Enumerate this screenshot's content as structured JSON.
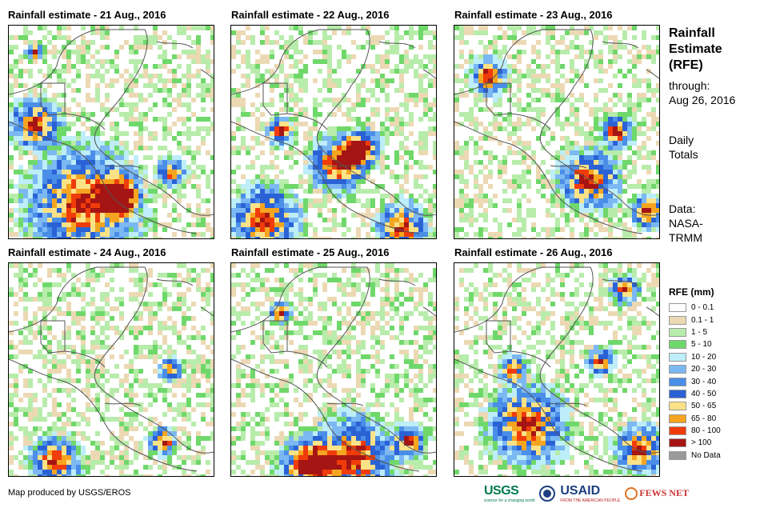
{
  "panels": [
    {
      "title": "Rainfall estimate - 21 Aug., 2016",
      "seed": 21
    },
    {
      "title": "Rainfall estimate - 22 Aug., 2016",
      "seed": 22
    },
    {
      "title": "Rainfall estimate - 23 Aug., 2016",
      "seed": 23
    },
    {
      "title": "Rainfall estimate - 24 Aug., 2016",
      "seed": 24
    },
    {
      "title": "Rainfall estimate - 25 Aug., 2016",
      "seed": 25
    },
    {
      "title": "Rainfall estimate - 26 Aug., 2016",
      "seed": 26
    }
  ],
  "side": {
    "title_lines": [
      "Rainfall",
      "Estimate",
      "(RFE)"
    ],
    "through_lines": [
      "through:",
      "Aug 26, 2016"
    ],
    "daily_lines": [
      "Daily",
      "Totals"
    ],
    "data_lines": [
      "Data:",
      "NASA-",
      "TRMM"
    ]
  },
  "legend": {
    "title": "RFE (mm)",
    "items": [
      {
        "label": "0 - 0.1",
        "color": "#ffffff"
      },
      {
        "label": "0.1 - 1",
        "color": "#ecd9b4"
      },
      {
        "label": "1 - 5",
        "color": "#b8ecab"
      },
      {
        "label": "5 - 10",
        "color": "#6fd86a"
      },
      {
        "label": "10 - 20",
        "color": "#bdeef9"
      },
      {
        "label": "20 - 30",
        "color": "#7cb8f2"
      },
      {
        "label": "30 - 40",
        "color": "#4a8ee8"
      },
      {
        "label": "40 - 50",
        "color": "#2a62d6"
      },
      {
        "label": "50 - 65",
        "color": "#fbe287"
      },
      {
        "label": "65 - 80",
        "color": "#f5a520"
      },
      {
        "label": "80 - 100",
        "color": "#f03c0a"
      },
      {
        "label": "> 100",
        "color": "#a51514"
      },
      {
        "label": "No Data",
        "color": "#9a9a9a"
      }
    ]
  },
  "credit": "Map produced by USGS/EROS",
  "logos": {
    "usgs": "USGS",
    "usgs_tagline": "science for a changing world",
    "usaid": "USAID",
    "usaid_tagline": "FROM THE AMERICAN PEOPLE",
    "fews": "FEWS NET"
  },
  "coastline_color": "#555555"
}
